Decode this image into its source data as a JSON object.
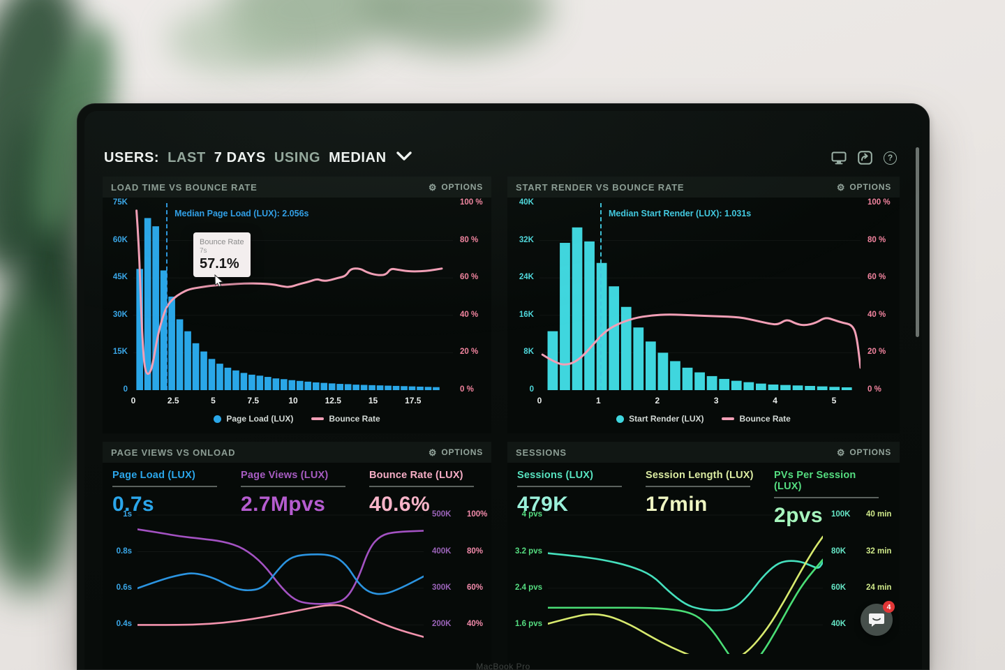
{
  "laptop": {
    "brand_text": "MacBook Pro"
  },
  "header": {
    "users_label": "USERS:",
    "range_label": "LAST",
    "days_label": "7 DAYS",
    "using_label": "USING",
    "metric_label": "MEDIAN",
    "icons": [
      "display-icon",
      "share-icon",
      "help-icon"
    ]
  },
  "chat": {
    "badge": "4"
  },
  "panels": [
    {
      "title": "LOAD TIME VS BOUNCE RATE",
      "options_label": "OPTIONS",
      "tooltip": {
        "title": "Bounce Rate",
        "x_value": "7s",
        "value": "57.1%"
      }
    },
    {
      "title": "START RENDER VS BOUNCE RATE",
      "options_label": "OPTIONS"
    },
    {
      "title": "PAGE VIEWS VS ONLOAD",
      "options_label": "OPTIONS",
      "metrics": [
        {
          "label": "Page Load (LUX)",
          "value": "0.7s",
          "color": "#2ba6ea"
        },
        {
          "label": "Page Views (LUX)",
          "value": "2.7Mpvs",
          "color": "#b55ccf"
        },
        {
          "label": "Bounce Rate (LUX)",
          "value": "40.6%",
          "color": "#f7b4c8"
        }
      ]
    },
    {
      "title": "SESSIONS",
      "options_label": "OPTIONS",
      "metrics": [
        {
          "label": "Sessions (LUX)",
          "value": "479K",
          "color": "#66e6c6"
        },
        {
          "label": "Session Length (LUX)",
          "value": "17min",
          "color": "#e9f2ae"
        },
        {
          "label": "PVs Per Session (LUX)",
          "value": "2pvs",
          "color": "#7fec9c"
        }
      ]
    }
  ],
  "chart_data": [
    {
      "id": "load-time-vs-bounce-rate",
      "type": "bar",
      "title": "LOAD TIME VS BOUNCE RATE",
      "x_domain": [
        0,
        20
      ],
      "x_ticks": [
        {
          "v": 0,
          "t": "0"
        },
        {
          "v": 2.5,
          "t": "2.5"
        },
        {
          "v": 5,
          "t": "5"
        },
        {
          "v": 7.5,
          "t": "7.5"
        },
        {
          "v": 10,
          "t": "10"
        },
        {
          "v": 12.5,
          "t": "12.5"
        },
        {
          "v": 15,
          "t": "15"
        },
        {
          "v": 17.5,
          "t": "17.5"
        }
      ],
      "y_left": {
        "labels": [
          "75K",
          "60K",
          "45K",
          "30K",
          "15K",
          "0"
        ],
        "color": "#3aa7e8",
        "max_k": 75
      },
      "y_right": {
        "labels": [
          "100 %",
          "80 %",
          "60 %",
          "40 %",
          "20 %",
          "0 %"
        ],
        "color": "#f2849f"
      },
      "bars": {
        "name": "Page Load (LUX)",
        "color": "#2aa7e8",
        "start": 0.15,
        "end": 19.2,
        "values_k": [
          48.6,
          69,
          65.7,
          48,
          37.5,
          28.4,
          23.6,
          18.8,
          15.5,
          12.5,
          10.6,
          9,
          7.9,
          6.9,
          6.2,
          5.8,
          5.3,
          4.7,
          4.4,
          4,
          3.7,
          3.4,
          3.1,
          2.9,
          2.7,
          2.5,
          2.4,
          2.2,
          2.1,
          2,
          1.9,
          1.8,
          1.7,
          1.6,
          1.5,
          1.4,
          1.3,
          1.2
        ]
      },
      "line": {
        "name": "Bounce Rate",
        "color": "#f29fb6",
        "y_domain": [
          0,
          100
        ],
        "points": [
          [
            0.2,
            96
          ],
          [
            0.35,
            78
          ],
          [
            0.5,
            40
          ],
          [
            0.65,
            16
          ],
          [
            0.8,
            9
          ],
          [
            1.0,
            8.5
          ],
          [
            1.2,
            13
          ],
          [
            1.5,
            28
          ],
          [
            1.8,
            38
          ],
          [
            2.1,
            45
          ],
          [
            2.5,
            49
          ],
          [
            3.0,
            52
          ],
          [
            3.5,
            54
          ],
          [
            4.2,
            55
          ],
          [
            5.0,
            56
          ],
          [
            6.0,
            56.5
          ],
          [
            7.0,
            57.1
          ],
          [
            8.0,
            57
          ],
          [
            8.8,
            56.5
          ],
          [
            9.3,
            55.5
          ],
          [
            9.8,
            55
          ],
          [
            10.3,
            56.5
          ],
          [
            11.0,
            58
          ],
          [
            11.5,
            59.5
          ],
          [
            11.8,
            58.5
          ],
          [
            12.2,
            58.5
          ],
          [
            12.8,
            60
          ],
          [
            13.3,
            61
          ],
          [
            13.6,
            65
          ],
          [
            14.2,
            65
          ],
          [
            14.6,
            63
          ],
          [
            15.2,
            61.5
          ],
          [
            15.8,
            61.5
          ],
          [
            16.1,
            65
          ],
          [
            16.5,
            64.5
          ],
          [
            17.2,
            63.5
          ],
          [
            18.0,
            63.5
          ],
          [
            18.6,
            64
          ],
          [
            19.3,
            65
          ]
        ]
      },
      "median": {
        "x": 2.056,
        "label": "Median Page Load (LUX): 2.056s",
        "color": "#2f9fe8"
      },
      "legend": [
        {
          "label": "Page Load (LUX)",
          "color": "#2aa7e8",
          "marker": "dot"
        },
        {
          "label": "Bounce Rate",
          "color": "#f29fb6",
          "marker": "dash"
        }
      ]
    },
    {
      "id": "start-render-vs-bounce-rate",
      "type": "bar",
      "title": "START RENDER VS BOUNCE RATE",
      "x_domain": [
        0,
        5.45
      ],
      "x_ticks": [
        {
          "v": 0,
          "t": "0"
        },
        {
          "v": 1,
          "t": "1"
        },
        {
          "v": 2,
          "t": "2"
        },
        {
          "v": 3,
          "t": "3"
        },
        {
          "v": 4,
          "t": "4"
        },
        {
          "v": 5,
          "t": "5"
        }
      ],
      "y_left": {
        "labels": [
          "40K",
          "32K",
          "24K",
          "16K",
          "8K",
          "0"
        ],
        "color": "#4fd8dc",
        "max_k": 40
      },
      "y_right": {
        "labels": [
          "100 %",
          "80 %",
          "60 %",
          "40 %",
          "20 %",
          "0 %"
        ],
        "color": "#f2849f"
      },
      "bars": {
        "name": "Start Render (LUX)",
        "color": "#3fd6de",
        "start": 0.12,
        "end": 5.32,
        "values_k": [
          12.6,
          31.5,
          34.8,
          31.8,
          27.2,
          22.2,
          17.8,
          13.4,
          10.4,
          8,
          6.2,
          4.8,
          3.8,
          3,
          2.4,
          2,
          1.7,
          1.4,
          1.2,
          1.1,
          1,
          0.9,
          0.8,
          0.7,
          0.6
        ]
      },
      "line": {
        "name": "Bounce Rate",
        "color": "#f29fb6",
        "y_domain": [
          0,
          100
        ],
        "points": [
          [
            0.05,
            19
          ],
          [
            0.3,
            14
          ],
          [
            0.5,
            13.5
          ],
          [
            0.7,
            17
          ],
          [
            0.9,
            24
          ],
          [
            1.1,
            31
          ],
          [
            1.3,
            35
          ],
          [
            1.6,
            38.5
          ],
          [
            1.9,
            40
          ],
          [
            2.2,
            40.5
          ],
          [
            2.6,
            40
          ],
          [
            3.0,
            39.5
          ],
          [
            3.4,
            39
          ],
          [
            3.7,
            37
          ],
          [
            3.9,
            35.5
          ],
          [
            4.05,
            35
          ],
          [
            4.2,
            38
          ],
          [
            4.35,
            35.5
          ],
          [
            4.5,
            34.5
          ],
          [
            4.7,
            36
          ],
          [
            4.85,
            39
          ],
          [
            5.0,
            37.5
          ],
          [
            5.15,
            36
          ],
          [
            5.3,
            35
          ],
          [
            5.38,
            30
          ],
          [
            5.45,
            12
          ]
        ]
      },
      "median": {
        "x": 1.031,
        "label": "Median Start Render (LUX): 1.031s",
        "color": "#41c9e0"
      },
      "legend": [
        {
          "label": "Start Render (LUX)",
          "color": "#3fd6de",
          "marker": "dot"
        },
        {
          "label": "Bounce Rate",
          "color": "#f29fb6",
          "marker": "dash"
        }
      ]
    },
    {
      "id": "page-views-vs-onload",
      "type": "line",
      "title": "PAGE VIEWS VS ONLOAD",
      "row_fractions": [
        0.034,
        0.289,
        0.543,
        0.798
      ],
      "y_rows_left": {
        "labels": [
          "1s",
          "0.8s",
          "0.6s",
          "0.4s"
        ],
        "color": "#3aa7e8"
      },
      "y_rows_right": {
        "pairs": [
          [
            "500K",
            "100%"
          ],
          [
            "400K",
            "80%"
          ],
          [
            "300K",
            "60%"
          ],
          [
            "200K",
            "40%"
          ]
        ],
        "colors": [
          "#9a63b8",
          "#f28bab"
        ]
      },
      "series": [
        {
          "name": "Page Views (LUX)",
          "unit": "pvs",
          "color": "#a352c2",
          "domain": [
            121,
            526
          ],
          "points": [
            [
              0,
              472
            ],
            [
              0.08,
              462
            ],
            [
              0.15,
              452
            ],
            [
              0.22,
              446
            ],
            [
              0.3,
              438
            ],
            [
              0.37,
              420
            ],
            [
              0.44,
              375
            ],
            [
              0.5,
              310
            ],
            [
              0.55,
              272
            ],
            [
              0.6,
              262
            ],
            [
              0.68,
              262
            ],
            [
              0.73,
              275
            ],
            [
              0.77,
              330
            ],
            [
              0.81,
              420
            ],
            [
              0.85,
              455
            ],
            [
              0.9,
              465
            ],
            [
              1,
              468
            ]
          ]
        },
        {
          "name": "Page Load (LUX)",
          "unit": "s",
          "color": "#2b94e0",
          "domain": [
            0.242,
            1.026
          ],
          "points": [
            [
              0,
              0.6
            ],
            [
              0.08,
              0.645
            ],
            [
              0.15,
              0.675
            ],
            [
              0.2,
              0.685
            ],
            [
              0.27,
              0.655
            ],
            [
              0.33,
              0.605
            ],
            [
              0.38,
              0.585
            ],
            [
              0.44,
              0.6
            ],
            [
              0.49,
              0.7
            ],
            [
              0.53,
              0.765
            ],
            [
              0.58,
              0.785
            ],
            [
              0.68,
              0.785
            ],
            [
              0.73,
              0.73
            ],
            [
              0.77,
              0.63
            ],
            [
              0.81,
              0.575
            ],
            [
              0.86,
              0.565
            ],
            [
              0.92,
              0.6
            ],
            [
              1,
              0.665
            ]
          ]
        },
        {
          "name": "Bounce Rate (LUX)",
          "unit": "%",
          "color": "#f293ad",
          "domain": [
            24.2,
            102.6
          ],
          "points": [
            [
              0,
              40
            ],
            [
              0.15,
              40
            ],
            [
              0.25,
              40.5
            ],
            [
              0.35,
              42
            ],
            [
              0.45,
              44.5
            ],
            [
              0.55,
              47.5
            ],
            [
              0.63,
              50
            ],
            [
              0.68,
              51
            ],
            [
              0.72,
              50.5
            ],
            [
              0.78,
              46
            ],
            [
              0.85,
              41
            ],
            [
              0.92,
              37
            ],
            [
              1,
              33.5
            ]
          ]
        }
      ]
    },
    {
      "id": "sessions",
      "type": "line",
      "title": "SESSIONS",
      "row_fractions": [
        0.034,
        0.289,
        0.543,
        0.798
      ],
      "y_rows_left": {
        "labels": [
          "4 pvs",
          "3.2 pvs",
          "2.4 pvs",
          "1.6 pvs"
        ],
        "color": "#55dd80"
      },
      "y_rows_right": {
        "pairs": [
          [
            "100K",
            "40 min"
          ],
          [
            "80K",
            "32 min"
          ],
          [
            "60K",
            "24 min"
          ],
          [
            "40K",
            ""
          ]
        ],
        "colors": [
          "#66e6c6",
          "#cfe98a"
        ]
      },
      "series": [
        {
          "name": "Sessions (LUX)",
          "unit": "K",
          "color": "#45e0bd",
          "domain": [
            26,
            104.5
          ],
          "points": [
            [
              0,
              81
            ],
            [
              0.1,
              79.5
            ],
            [
              0.2,
              77.5
            ],
            [
              0.3,
              74
            ],
            [
              0.38,
              69
            ],
            [
              0.44,
              60
            ],
            [
              0.5,
              53
            ],
            [
              0.55,
              50.5
            ],
            [
              0.62,
              49.5
            ],
            [
              0.68,
              51
            ],
            [
              0.73,
              58
            ],
            [
              0.78,
              68
            ],
            [
              0.83,
              75
            ],
            [
              0.87,
              77
            ],
            [
              0.92,
              76.5
            ],
            [
              0.96,
              74
            ],
            [
              0.985,
              72.5
            ],
            [
              1,
              76
            ]
          ]
        },
        {
          "name": "Session Length (LUX)",
          "unit": "min",
          "color": "#d8ea6e",
          "domain": [
            10.4,
            41.8
          ],
          "points": [
            [
              0,
              17
            ],
            [
              0.08,
              18.3
            ],
            [
              0.15,
              19.2
            ],
            [
              0.22,
              18.8
            ],
            [
              0.3,
              16.8
            ],
            [
              0.38,
              14
            ],
            [
              0.45,
              11.8
            ],
            [
              0.52,
              10
            ],
            [
              0.6,
              8.5
            ],
            [
              0.67,
              8.8
            ],
            [
              0.73,
              11
            ],
            [
              0.8,
              16
            ],
            [
              0.86,
              22
            ],
            [
              0.92,
              28.5
            ],
            [
              0.97,
              33.5
            ],
            [
              1,
              36
            ]
          ]
        },
        {
          "name": "PVs Per Session (LUX)",
          "unit": "pvs",
          "color": "#4ade76",
          "domain": [
            1.04,
            4.18
          ],
          "points": [
            [
              0,
              2.05
            ],
            [
              0.2,
              2.05
            ],
            [
              0.35,
              2.05
            ],
            [
              0.44,
              2.02
            ],
            [
              0.5,
              1.97
            ],
            [
              0.55,
              1.85
            ],
            [
              0.6,
              1.55
            ],
            [
              0.65,
              1.1
            ],
            [
              0.69,
              0.75
            ],
            [
              0.73,
              0.7
            ],
            [
              0.78,
              1.05
            ],
            [
              0.83,
              1.55
            ],
            [
              0.88,
              2.1
            ],
            [
              0.93,
              2.6
            ],
            [
              1,
              3.1
            ]
          ]
        }
      ]
    }
  ]
}
